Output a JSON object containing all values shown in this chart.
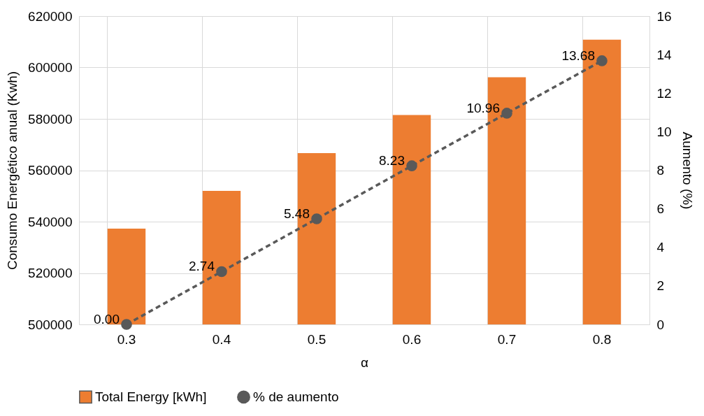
{
  "chart_data": {
    "type": "bar",
    "xlabel": "α",
    "ylabel": "Consumo Energético anual (Kwh)",
    "y2label": "Aumento (%)",
    "categories": [
      "0.3",
      "0.4",
      "0.5",
      "0.6",
      "0.7",
      "0.8"
    ],
    "series": [
      {
        "name": "Total Energy [kWh]",
        "color": "#ed7d31",
        "values": [
          537300,
          552000,
          566700,
          581500,
          596200,
          610800
        ]
      },
      {
        "name": "% de aumento",
        "type": "line",
        "axis": "y2",
        "color": "#595959",
        "marker": "circle",
        "line_style": "dashed",
        "values": [
          0,
          2.74,
          5.48,
          8.23,
          10.96,
          13.68
        ],
        "value_labels": [
          "0.00",
          "2.74",
          "5.48",
          "8.23",
          "10.96",
          "13.68"
        ]
      }
    ],
    "ylim": [
      500000,
      620000
    ],
    "yticks": [
      500000,
      520000,
      540000,
      560000,
      580000,
      600000,
      620000
    ],
    "y2lim": [
      0,
      16
    ],
    "y2ticks": [
      0,
      2,
      4,
      6,
      8,
      10,
      12,
      14,
      16
    ],
    "grid": true,
    "legend": "bottom"
  }
}
